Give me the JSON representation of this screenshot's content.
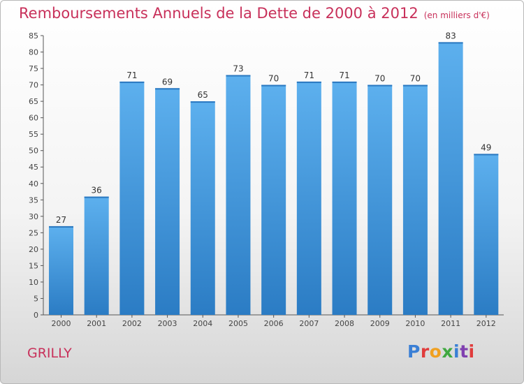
{
  "header": {
    "title": "Remboursements Annuels de la Dette de 2000 à 2012",
    "unit_note": "(en milliers d'€)"
  },
  "footer": {
    "location": "GRILLY",
    "brand": "Proxiti",
    "brand_colors": [
      "#3a7fd5",
      "#e03c3c",
      "#f0a020",
      "#40a840",
      "#3a7fd5",
      "#8040b0",
      "#e03c3c"
    ]
  },
  "colors": {
    "bar": "#3a8fd8",
    "bar_light": "#5aabea",
    "title": "#c8305a"
  },
  "chart_data": {
    "type": "bar",
    "title": "Remboursements Annuels de la Dette de 2000 à 2012",
    "subtitle": "(en milliers d'€)",
    "xlabel": "",
    "ylabel": "",
    "categories": [
      "2000",
      "2001",
      "2002",
      "2003",
      "2004",
      "2005",
      "2006",
      "2007",
      "2008",
      "2009",
      "2010",
      "2011",
      "2012"
    ],
    "values": [
      27,
      36,
      71,
      69,
      65,
      73,
      70,
      71,
      71,
      70,
      70,
      83,
      49
    ],
    "ylim": [
      0,
      85
    ],
    "ytick_step": 5,
    "grid": false,
    "legend": "none"
  }
}
